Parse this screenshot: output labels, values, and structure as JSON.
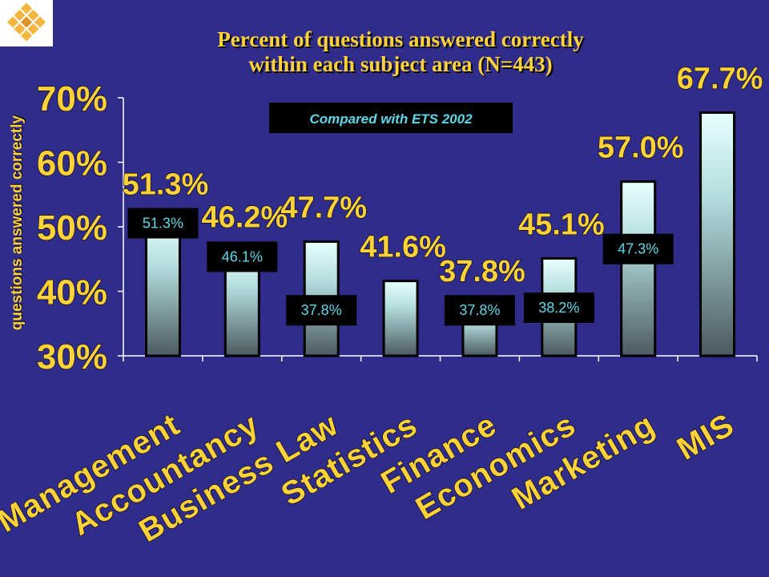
{
  "title_lines": [
    "Percent of questions answered correctly",
    "within each subject area (N=443)"
  ],
  "chart_data": {
    "type": "bar",
    "title": "Percent of questions answered correctly within each subject area (N=443)",
    "ylabel": "questions answered correctly",
    "xlabel": "",
    "ylim": [
      30,
      70
    ],
    "yticks": [
      "30%",
      "40%",
      "50%",
      "60%",
      "70%"
    ],
    "ytick_values": [
      30,
      40,
      50,
      60,
      70
    ],
    "categories": [
      "Management",
      "Accountancy",
      "Business Law",
      "Statistics",
      "Finance",
      "Economics",
      "Marketing",
      "MIS"
    ],
    "series": [
      {
        "values": [
          51.3,
          46.2,
          47.7,
          41.6,
          37.8,
          45.1,
          57.0,
          67.7
        ],
        "labels": [
          "51.3%",
          "46.2%",
          "47.7%",
          "41.6%",
          "37.8%",
          "45.1%",
          "57.0%",
          "67.7%"
        ]
      }
    ],
    "comparison": {
      "name": "Compared with ETS 2002",
      "values": [
        51.3,
        46.1,
        37.8,
        null,
        37.8,
        38.2,
        47.3,
        null
      ],
      "labels": [
        "51.3%",
        "46.1%",
        "37.8%",
        "",
        "37.8%",
        "38.2%",
        "47.3%",
        ""
      ]
    },
    "legend_position": "top-center",
    "grid": false
  },
  "colors": {
    "background": "#2f2c8a",
    "text_accent": "#ffd23a",
    "bar_top": "#e8ffff",
    "bar_bottom": "#4a5a60",
    "comparison_text": "#5ed8e8",
    "comparison_box": "#000000"
  },
  "icons": {
    "logo": "diamond-lattice-logo"
  }
}
